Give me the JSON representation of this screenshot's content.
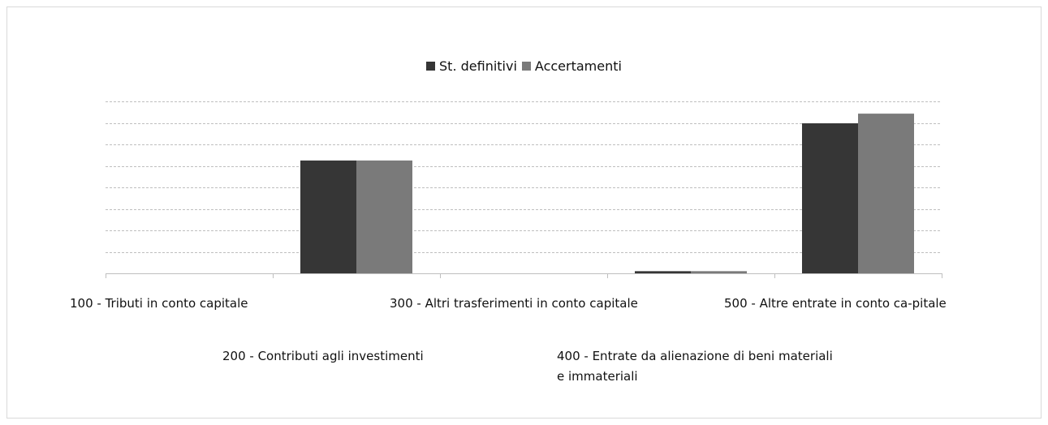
{
  "chart_data": {
    "type": "bar",
    "categories": [
      "100 - Tributi in conto capitale",
      "200 - Contributi agli investimenti",
      "300 - Altri trasferimenti in conto capitale",
      "400 - Entrate da alienazione di beni materiali e immateriali",
      "500 - Altre entrate in conto ca-pitale"
    ],
    "series": [
      {
        "name": "St. definitivi",
        "color": "#363636",
        "values": [
          0,
          5.25,
          0,
          0.1,
          6.98
        ]
      },
      {
        "name": "Accertamenti",
        "color": "#7a7a7a",
        "values": [
          0,
          5.25,
          0,
          0.1,
          7.43
        ]
      }
    ],
    "ylim": [
      0,
      8
    ],
    "yticks": [
      1,
      2,
      3,
      4,
      5,
      6,
      7,
      8
    ],
    "grid": true,
    "legend": "top"
  }
}
